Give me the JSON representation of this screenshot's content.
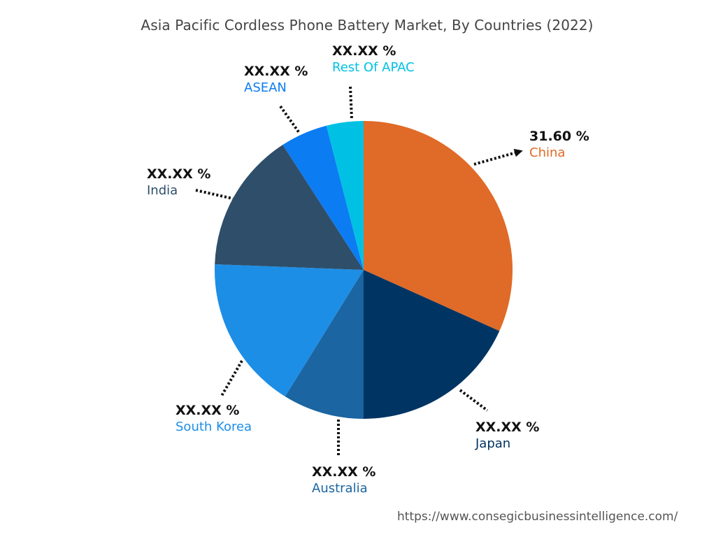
{
  "chart_data": {
    "type": "pie",
    "title": "Asia Pacific Cordless Phone Battery Market, By Countries (2022)",
    "slices": [
      {
        "label": "China",
        "value_text": "31.60 %",
        "value": 31.6,
        "color": "#E06A27"
      },
      {
        "label": "Japan",
        "value_text": "XX.XX %",
        "value": 18.2,
        "color": "#003463"
      },
      {
        "label": "Australia",
        "value_text": "XX.XX %",
        "value": 8.8,
        "color": "#1A65A2"
      },
      {
        "label": "South Korea",
        "value_text": "XX.XX %",
        "value": 16.7,
        "color": "#1D8EE6"
      },
      {
        "label": "India",
        "value_text": "XX.XX %",
        "value": 15.2,
        "color": "#2E4E6A"
      },
      {
        "label": "ASEAN",
        "value_text": "XX.XX %",
        "value": 5.1,
        "color": "#0C7CF2"
      },
      {
        "label": "Rest Of APAC",
        "value_text": "XX.XX %",
        "value": 4.0,
        "color": "#00C1E4"
      }
    ]
  },
  "footer": {
    "source_url": "https://www.consegicbusinessintelligence.com/"
  }
}
